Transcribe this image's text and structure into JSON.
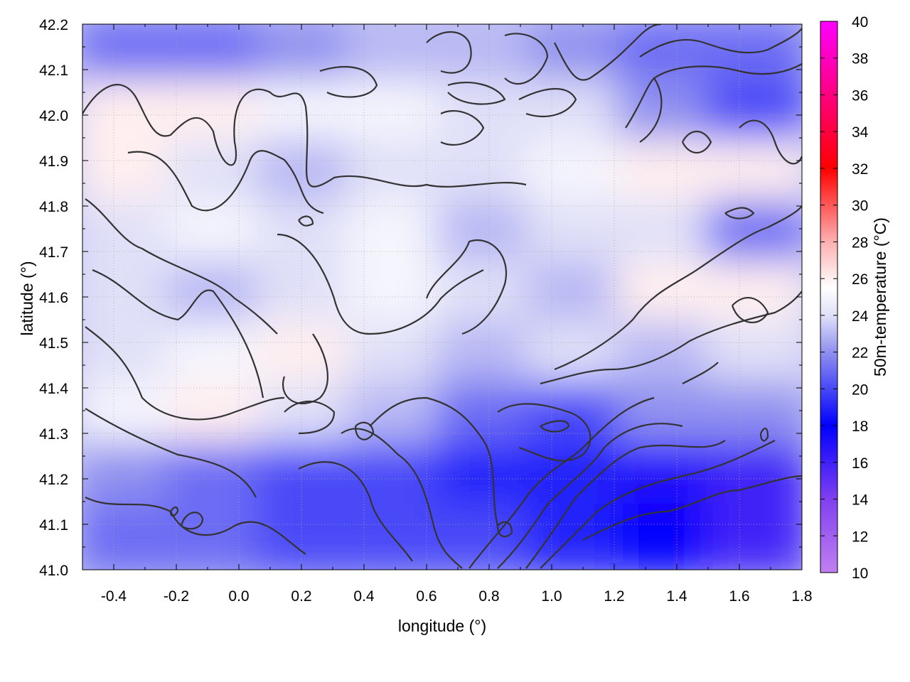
{
  "chart_data": {
    "type": "heatmap",
    "title": "",
    "xlabel": "longitude (°)",
    "ylabel": "latitude (°)",
    "colorbar_label": "50m-temperature (°C)",
    "xlim": [
      -0.5,
      1.8
    ],
    "ylim": [
      41.0,
      42.2
    ],
    "x_ticks": [
      "-0.4",
      "-0.2",
      "0.0",
      "0.2",
      "0.4",
      "0.6",
      "0.8",
      "1.0",
      "1.2",
      "1.4",
      "1.6",
      "1.8"
    ],
    "y_ticks": [
      "41.0",
      "41.1",
      "41.2",
      "41.3",
      "41.4",
      "41.5",
      "41.6",
      "41.7",
      "41.8",
      "41.9",
      "42.0",
      "42.1",
      "42.2"
    ],
    "colorbar_range": [
      10,
      40
    ],
    "colorbar_ticks": [
      "10",
      "12",
      "14",
      "16",
      "18",
      "20",
      "22",
      "24",
      "26",
      "28",
      "30",
      "32",
      "34",
      "36",
      "38",
      "40"
    ],
    "colormap": [
      {
        "value": 10,
        "color": "#c080f0"
      },
      {
        "value": 14,
        "color": "#8040f0"
      },
      {
        "value": 18,
        "color": "#0000ff"
      },
      {
        "value": 22,
        "color": "#9090f0"
      },
      {
        "value": 24,
        "color": "#e0e0f8"
      },
      {
        "value": 25.5,
        "color": "#ffffff"
      },
      {
        "value": 28,
        "color": "#ffb0b0"
      },
      {
        "value": 32,
        "color": "#ff0000"
      },
      {
        "value": 36,
        "color": "#ff0080"
      },
      {
        "value": 40,
        "color": "#ff00ff"
      }
    ],
    "grid": true,
    "contours": true,
    "temperature_field": [
      [
        21,
        21,
        22,
        23,
        23,
        22,
        21,
        21
      ],
      [
        26,
        26,
        25,
        25,
        24,
        24,
        22,
        20
      ],
      [
        26,
        24,
        23,
        24,
        24,
        25,
        26,
        26
      ],
      [
        24,
        25,
        24,
        25,
        23,
        24,
        24,
        21
      ],
      [
        24,
        23,
        24,
        25,
        24,
        23,
        26,
        26
      ],
      [
        24,
        25,
        26,
        24,
        23,
        24,
        23,
        24
      ],
      [
        25,
        26,
        24,
        23,
        21,
        20,
        22,
        22
      ],
      [
        22,
        21,
        20,
        20,
        19,
        19,
        17,
        16
      ],
      [
        21,
        21,
        20,
        20,
        20,
        19,
        18,
        16
      ]
    ]
  }
}
